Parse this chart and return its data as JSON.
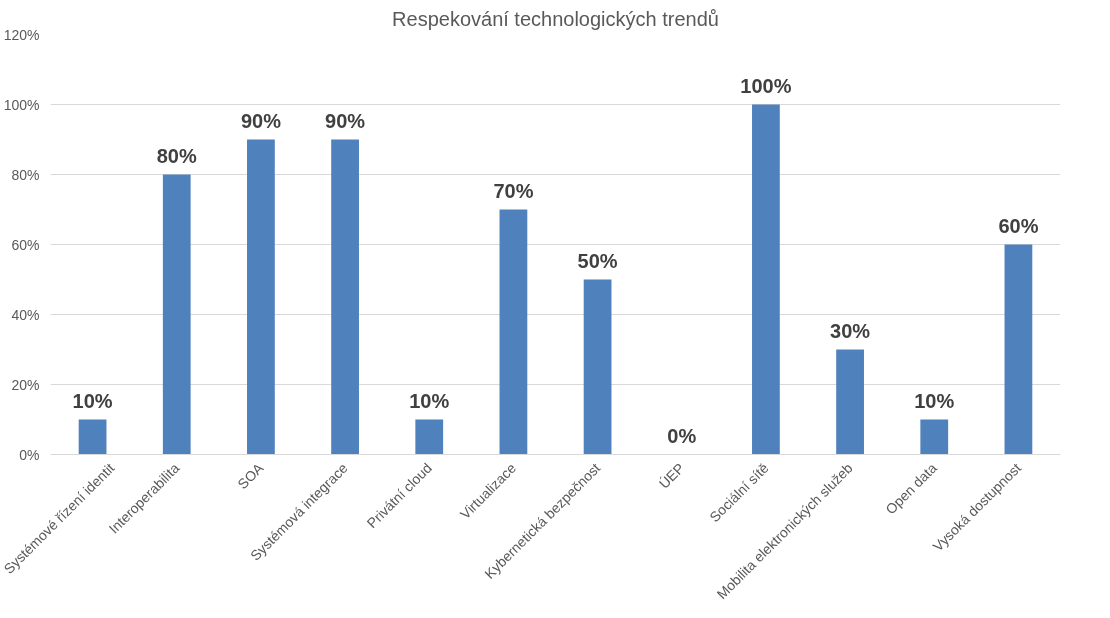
{
  "chart_data": {
    "type": "bar",
    "title": "Respekování technologických trendů",
    "categories": [
      "Systémové řízení identit",
      "Interoperabilita",
      "SOA",
      "Systémová integrace",
      "Privátní cloud",
      "Virtualizace",
      "Kybernetická bezpečnost",
      "ÚEP",
      "Sociální sítě",
      "Mobilita elektronických služeb",
      "Open data",
      "Vysoká dostupnost"
    ],
    "values": [
      10,
      80,
      90,
      90,
      10,
      70,
      50,
      0,
      100,
      30,
      10,
      60
    ],
    "value_labels": [
      "10%",
      "80%",
      "90%",
      "90%",
      "10%",
      "70%",
      "50%",
      "0%",
      "100%",
      "30%",
      "10%",
      "60%"
    ],
    "color": "#4f81bd",
    "ylim": [
      0,
      120
    ],
    "yticks": [
      {
        "value": 0,
        "label": "0%"
      },
      {
        "value": 20,
        "label": "20%"
      },
      {
        "value": 40,
        "label": "40%"
      },
      {
        "value": 60,
        "label": "60%"
      },
      {
        "value": 80,
        "label": "80%"
      },
      {
        "value": 100,
        "label": "100%"
      },
      {
        "value": 120,
        "label": "120%"
      }
    ],
    "grid": "y"
  }
}
